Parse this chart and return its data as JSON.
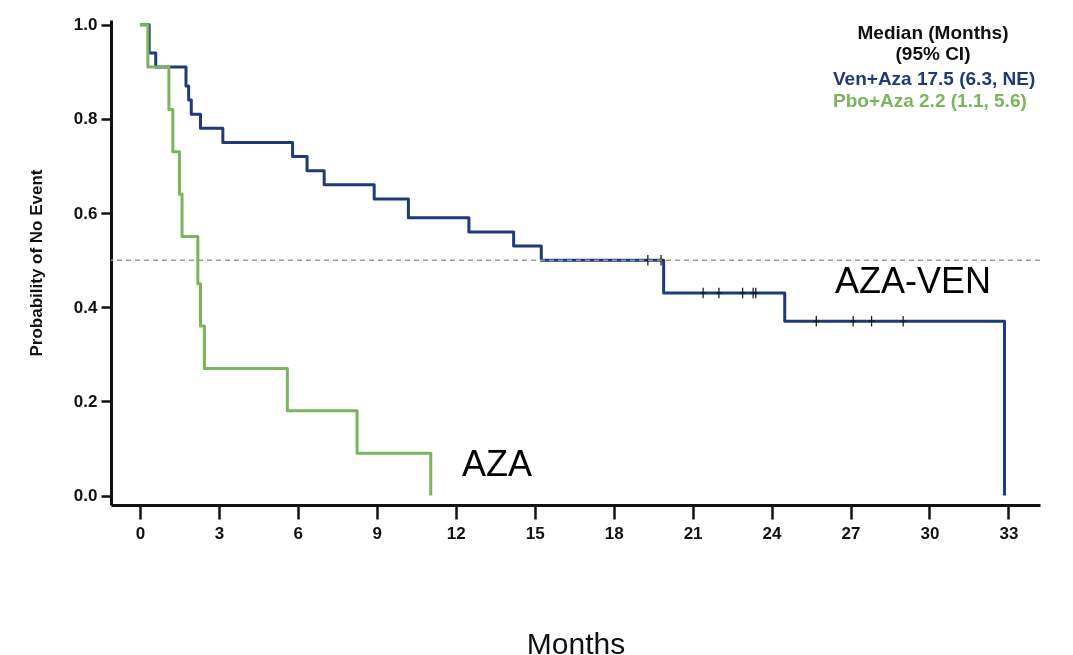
{
  "chart_data": {
    "type": "step",
    "xlabel": "Months",
    "ylabel": "Probability of No Event",
    "legend_title": "Median (Months)\n(95% CI)",
    "legend": "top right",
    "grid": false,
    "line_style": "solid",
    "xlim": [
      -1.1,
      34.2
    ],
    "xticks": [
      0,
      3,
      6,
      9,
      12,
      15,
      18,
      21,
      24,
      27,
      30,
      33
    ],
    "ylim": [
      -0.02,
      1.01
    ],
    "yticks": [
      {
        "value": 0,
        "label": "0.0"
      },
      {
        "value": 0.2,
        "label": "0.2"
      },
      {
        "value": 0.4,
        "label": "0.4"
      },
      {
        "value": 0.6,
        "label": "0.6"
      },
      {
        "value": 0.8,
        "label": "0.8"
      },
      {
        "value": 1,
        "label": "1.0"
      }
    ],
    "series": [
      {
        "name": "Ven+Aza 17.5 (6.3, NE)",
        "color": "#1f3a7a",
        "x": [
          0,
          0.35,
          0.6,
          1.75,
          1.85,
          1.95,
          2.3,
          3.15,
          5.8,
          6.35,
          7.0,
          8.9,
          10.2,
          12.5,
          14.2,
          15.25,
          19.9,
          24.5,
          32.85,
          32.85
        ],
        "values": [
          1,
          0.94,
          0.91,
          0.87,
          0.84,
          0.81,
          0.78,
          0.75,
          0.72,
          0.69,
          0.66,
          0.63,
          0.59,
          0.56,
          0.53,
          0.5,
          0.43,
          0.37,
          0,
          0
        ]
      },
      {
        "name": "Pbo+Aza  2.2 (1.1, 5.6)",
        "color": "#7ab55c",
        "x": [
          0,
          0.3,
          1.1,
          1.25,
          1.5,
          1.6,
          2.2,
          2.3,
          2.45,
          5.6,
          8.25,
          11.05,
          11.05
        ],
        "values": [
          1,
          0.91,
          0.82,
          0.73,
          0.64,
          0.55,
          0.45,
          0.36,
          0.27,
          0.18,
          0.09,
          0,
          0
        ]
      },
      {
        "type": "scatter",
        "color": "#1a1a1a",
        "marker": "cross",
        "x": [
          19.3,
          19.8,
          21.4,
          22.0,
          22.9,
          23.3,
          23.4,
          25.7,
          27.1,
          27.8,
          29.0
        ],
        "values": [
          0.5,
          0.5,
          0.43,
          0.43,
          0.43,
          0.43,
          0.43,
          0.37,
          0.37,
          0.37,
          0.37
        ]
      }
    ],
    "ref_lines": [
      {
        "axis": "y",
        "value": 0.5,
        "color": "#999999",
        "line_style": "dashed"
      }
    ],
    "annotations": [
      "AZA",
      "AZA-VEN"
    ]
  }
}
